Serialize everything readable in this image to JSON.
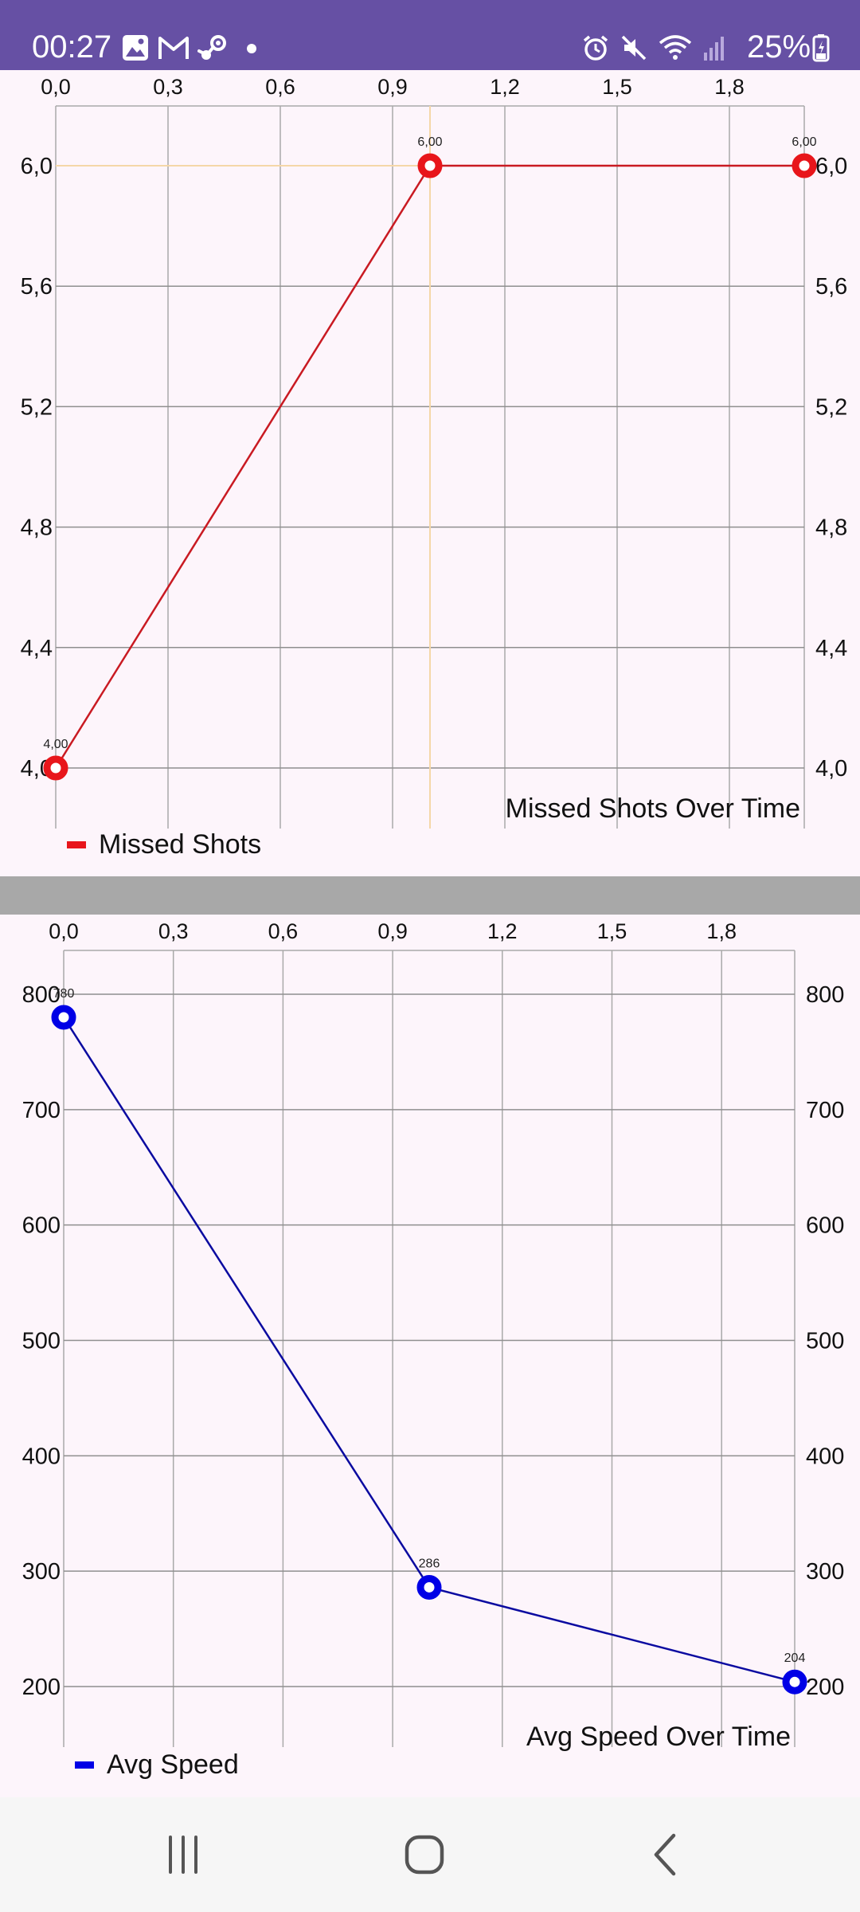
{
  "status_bar": {
    "time": "00:27",
    "battery": "25%",
    "left_icons": [
      "gallery-icon",
      "gmail-icon",
      "steam-icon",
      "notification-dot-icon"
    ],
    "right_icons": [
      "alarm-icon",
      "mute-icon",
      "wifi-icon",
      "signal-icon",
      "battery-charging-icon"
    ],
    "color": "#6650a4"
  },
  "chart_data": [
    {
      "type": "line",
      "title": "Missed Shots Over Time",
      "x": [
        0,
        1,
        2
      ],
      "series": [
        {
          "name": "Missed Shots",
          "values": [
            4,
            6,
            6
          ],
          "point_labels": [
            "4,00",
            "6,00",
            "6,00"
          ],
          "color": "#e8161b",
          "line_color": "#c91a22"
        }
      ],
      "xlim": [
        0,
        2
      ],
      "ylim": [
        4,
        6.2
      ],
      "x_ticks": [
        "0,0",
        "0,3",
        "0,6",
        "0,9",
        "1,2",
        "1,5",
        "1,8"
      ],
      "x_tick_values": [
        0,
        0.3,
        0.6,
        0.9,
        1.2,
        1.5,
        1.8
      ],
      "y_ticks": [
        "4,0",
        "4,4",
        "4,8",
        "5,2",
        "5,6",
        "6,0"
      ],
      "y_tick_values": [
        4.0,
        4.4,
        4.8,
        5.2,
        5.6,
        6.0
      ],
      "x_axis_position": "top",
      "y_axis": "both sides",
      "grid": true,
      "highlight": {
        "x": 1,
        "y": 6,
        "color": "#f5d7a8"
      },
      "legend": "bottom-left"
    },
    {
      "type": "line",
      "title": "Avg Speed Over Time",
      "x": [
        0,
        1,
        2
      ],
      "series": [
        {
          "name": "Avg Speed",
          "values": [
            780,
            286,
            204
          ],
          "point_labels": [
            "780",
            "286",
            "204"
          ],
          "color": "#0000e6",
          "line_color": "#0a0aa0"
        }
      ],
      "xlim": [
        0,
        2
      ],
      "ylim": [
        150,
        838
      ],
      "x_ticks": [
        "0,0",
        "0,3",
        "0,6",
        "0,9",
        "1,2",
        "1,5",
        "1,8"
      ],
      "x_tick_values": [
        0,
        0.3,
        0.6,
        0.9,
        1.2,
        1.5,
        1.8
      ],
      "y_ticks": [
        "200",
        "300",
        "400",
        "500",
        "600",
        "700",
        "800"
      ],
      "y_tick_values": [
        200,
        300,
        400,
        500,
        600,
        700,
        800
      ],
      "x_axis_position": "top",
      "y_axis": "both sides",
      "grid": true,
      "legend": "bottom-left"
    }
  ],
  "nav_bar": {
    "buttons": [
      "recent-apps-icon",
      "home-icon",
      "back-icon"
    ]
  }
}
